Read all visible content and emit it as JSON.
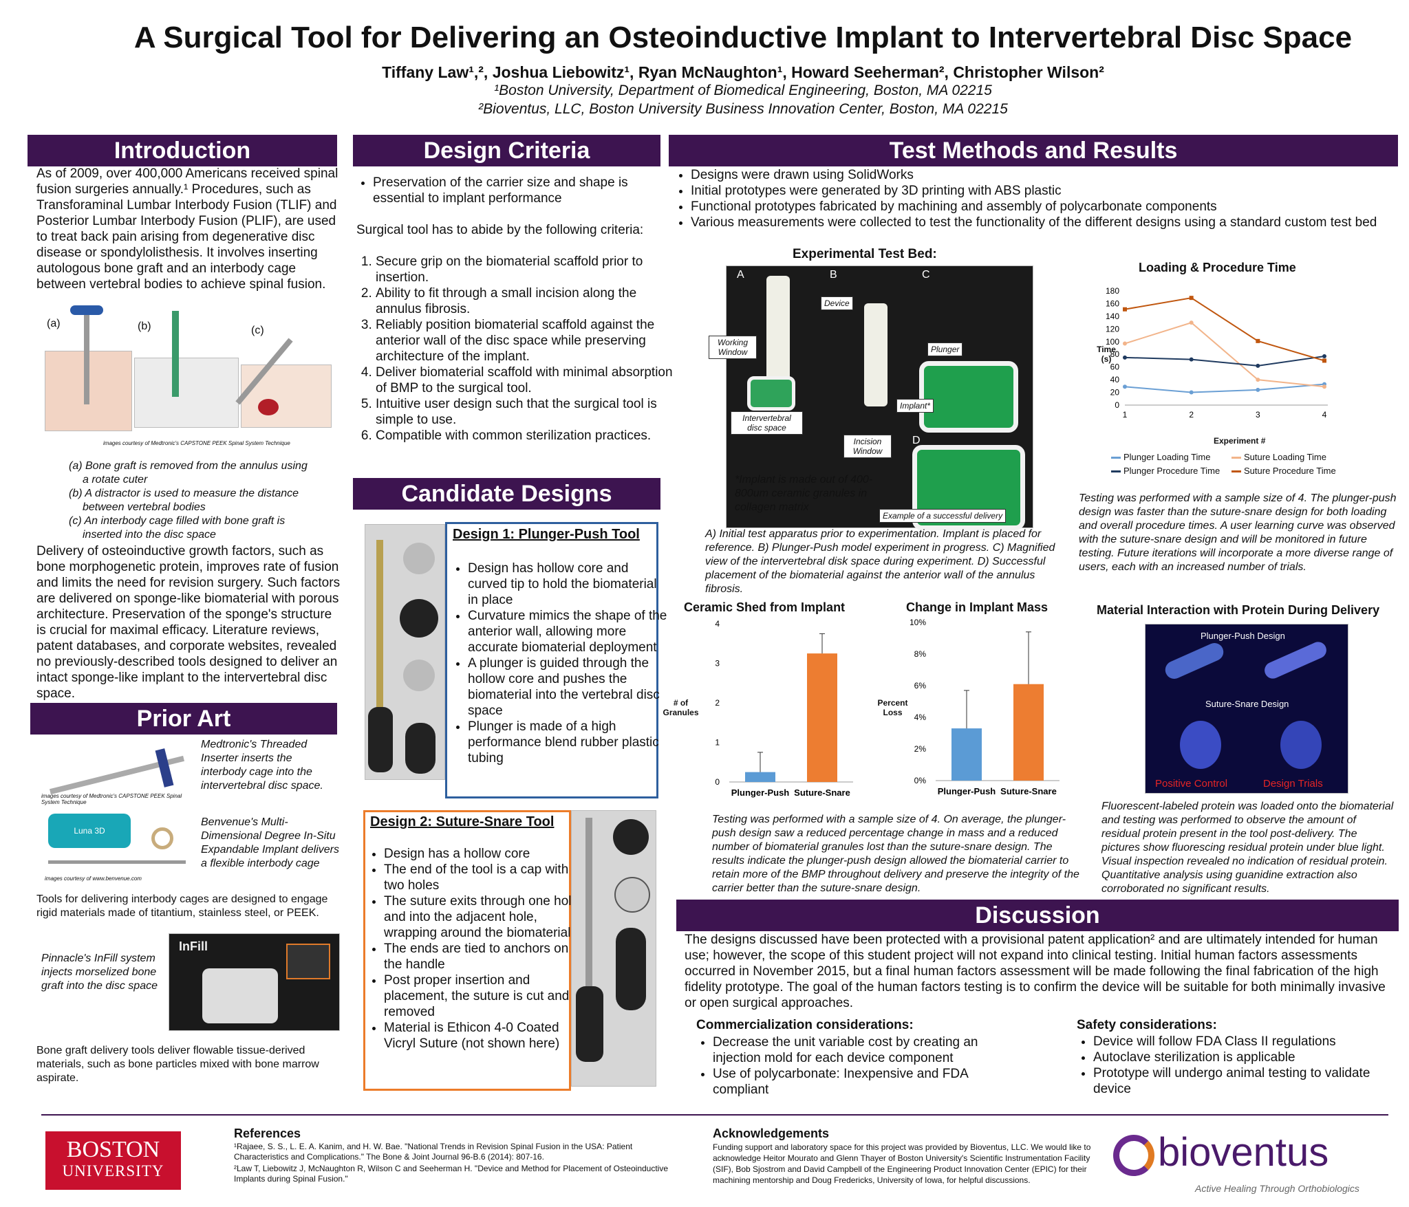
{
  "title": "A Surgical Tool for Delivering an Osteoinductive Implant to Intervertebral Disc Space",
  "authors": "Tiffany Law¹,², Joshua Liebowitz¹, Ryan McNaughton¹, Howard Seeherman², Christopher Wilson²",
  "affil1": "¹Boston University, Department of Biomedical Engineering, Boston, MA 02215",
  "affil2": "²Bioventus, LLC, Boston University Business Innovation Center, Boston, MA 02215",
  "intro": {
    "heading": "Introduction",
    "p1": "As of 2009, over 400,000 Americans received spinal fusion surgeries annually.¹ Procedures, such as Transforaminal Lumbar Interbody Fusion (TLIF) and Posterior Lumbar Interbody Fusion (PLIF), are used to treat back pain arising from degenerative disc disease or spondylolisthesis. It involves inserting autologous bone graft and an interbody cage between vertebral bodies to achieve spinal fusion.",
    "fig_a": "(a)",
    "fig_b": "(b)",
    "fig_c": "(c)",
    "credit": "images courtesy of Medtronic's CAPSTONE PEEK Spinal System Technique",
    "cap_a": "(a) Bone graft is removed from the annulus using a rotate cuter",
    "cap_b": "(b)  A distractor is used to measure the distance between vertebral bodies",
    "cap_c": "(c) An interbody cage filled with bone graft is inserted into the disc space",
    "p2": "Delivery of osteoinductive growth factors, such as bone morphogenetic protein, improves rate of fusion and limits the need for revision surgery. Such factors are delivered on sponge-like biomaterial with porous architecture. Preservation of the sponge's structure is crucial for maximal efficacy. Literature reviews, patent databases, and corporate websites, revealed no previously-described tools designed to deliver an intact sponge-like implant to the intervertebral disc space."
  },
  "prior": {
    "heading": "Prior Art",
    "medtronic": "Medtronic's Threaded Inserter inserts the interbody cage into the intervertebral disc space.",
    "credit1": "images courtesy of Medtronic's CAPSTONE PEEK Spinal System Technique",
    "benvenue": "Benvenue's Multi-Dimensional Degree In-Situ Expandable Implant delivers a flexible interbody cage",
    "credit2": "images courtesy of www.benvenue.com",
    "luna": "Luna 3D",
    "tools": "Tools for delivering interbody cages are designed to engage rigid materials made of titantium, stainless steel, or PEEK.",
    "pinnacle": "Pinnacle's InFill system injects morselized bone graft into the disc space",
    "infill": "InFill",
    "bone": "Bone graft delivery tools deliver flowable tissue-derived materials, such as bone particles mixed with bone marrow aspirate."
  },
  "design": {
    "heading": "Design Criteria",
    "bullet": "Preservation of the carrier size and shape is essential to implant performance",
    "intro": "Surgical tool has to abide by the following criteria:",
    "items": [
      "Secure grip on the biomaterial scaffold prior to insertion.",
      "Ability to fit through a small incision along the annulus fibrosis.",
      "Reliably position biomaterial scaffold against the anterior wall of the disc space while preserving architecture of the implant.",
      "Deliver biomaterial scaffold with minimal absorption of BMP to the surgical tool.",
      "Intuitive user design such that the surgical tool is simple to use.",
      "Compatible with common sterilization practices."
    ]
  },
  "candidate": {
    "heading": "Candidate Designs",
    "d1_title": "Design 1: Plunger-Push Tool",
    "d1": [
      "Design has hollow core and curved tip to hold the biomaterial in place",
      "Curvature mimics the shape of the anterior wall, allowing more accurate biomaterial deployment",
      "A plunger is guided through the hollow core and pushes the biomaterial into the vertebral disc space",
      "Plunger is made of a high performance blend rubber plastic tubing"
    ],
    "d2_title": "Design 2: Suture-Snare Tool",
    "d2": [
      "Design has a hollow core",
      "The end of the tool is a cap with two holes",
      "The suture exits through one hole and into the adjacent hole, wrapping around the biomaterial",
      "The ends are tied to anchors on the handle",
      "Post proper insertion and placement, the suture is cut and removed",
      "Material is Ethicon 4-0 Coated Vicryl Suture (not shown here)"
    ]
  },
  "test": {
    "heading": "Test Methods and Results",
    "bullets": [
      "Designs were drawn using SolidWorks",
      "Initial prototypes were generated by 3D printing with ABS plastic",
      "Functional prototypes fabricated by machining and assembly of polycarbonate components",
      "Various measurements were collected to test the functionality of the different designs using a standard custom test bed"
    ],
    "bed_title": "Experimental Test Bed:",
    "labels": {
      "A": "A",
      "B": "B",
      "C": "C",
      "D": "D",
      "device": "Device",
      "working": "Working Window",
      "plunger": "Plunger",
      "implant": "Implant*",
      "ivd": "Intervertebral disc space",
      "incision": "Incision Window",
      "success": "Example of a successful delivery"
    },
    "implant_note": "*Implant is made out of 400-800um ceramic granules in collagen matrix",
    "bed_caption": "A) Initial test apparatus prior to experimentation. Implant is placed for reference. B) Plunger-Push model experiment in progress. C) Magnified view of the intervertebral disk space during experiment. D) Successful placement of the biomaterial against the anterior wall of the annulus fibrosis.",
    "loading_caption": "Testing was performed with a sample size of 4. The plunger-push design was faster than the suture-snare design for both loading and overall procedure times. A user learning curve was observed with the suture-snare design and will be monitored in future testing. Future iterations will incorporate a more diverse range of users, each with an increased number of trials.",
    "bars_caption": "Testing was performed with a sample size of 4. On average, the plunger-push design saw a reduced percentage change in mass and a reduced number of biomaterial granules lost than the suture-snare design. The results indicate the plunger-push design allowed the biomaterial carrier to retain more of the BMP throughout delivery and preserve the integrity of the carrier better than the suture-snare design.",
    "protein_title": "Material Interaction with Protein During Delivery",
    "protein_labels": {
      "pp": "Plunger-Push Design",
      "ss": "Suture-Snare Design",
      "pos": "Positive Control",
      "trials": "Design Trials"
    },
    "protein_caption": "Fluorescent-labeled protein was loaded onto the biomaterial and testing was performed to observe the amount of residual protein present in the tool post-delivery. The pictures show fluorescing residual protein under blue light. Visual inspection revealed no indication of residual protein. Quantitative analysis using guanidine extraction also corroborated no significant results."
  },
  "chart_data": [
    {
      "type": "line",
      "title": "Loading & Procedure Time",
      "xlabel": "Experiment #",
      "ylabel": "Time (s)",
      "x": [
        1,
        2,
        3,
        4
      ],
      "ylim": [
        0,
        180
      ],
      "yticks": [
        0,
        20,
        40,
        60,
        80,
        100,
        120,
        140,
        160,
        180
      ],
      "series": [
        {
          "name": "Plunger Loading Time",
          "color": "#6a9fd4",
          "values": [
            29,
            20,
            24,
            33
          ]
        },
        {
          "name": "Suture Loading Time",
          "color": "#f2b48a",
          "values": [
            97,
            130,
            40,
            29
          ]
        },
        {
          "name": "Plunger Procedure Time",
          "color": "#1f3a5f",
          "values": [
            75,
            72,
            62,
            77
          ]
        },
        {
          "name": "Suture Procedure Time",
          "color": "#c0560e",
          "values": [
            151,
            169,
            101,
            70
          ]
        }
      ]
    },
    {
      "type": "bar",
      "title": "Ceramic Shed from Implant",
      "ylabel": "# of Granules",
      "categories": [
        "Plunger-Push",
        "Suture-Snare"
      ],
      "values": [
        0.25,
        3.25
      ],
      "errors": [
        0.5,
        0.5
      ],
      "ylim": [
        0,
        4
      ],
      "yticks": [
        0,
        1,
        2,
        3,
        4
      ],
      "colors": [
        "#5b9bd5",
        "#ed7d31"
      ]
    },
    {
      "type": "bar",
      "title": "Change in Implant Mass",
      "ylabel": "Percent Loss",
      "categories": [
        "Plunger-Push",
        "Suture-Snare"
      ],
      "values": [
        3.3,
        6.1
      ],
      "errors": [
        2.4,
        3.3
      ],
      "ylim": [
        0,
        10
      ],
      "yticks": [
        "0%",
        "2%",
        "4%",
        "6%",
        "8%",
        "10%"
      ],
      "colors": [
        "#5b9bd5",
        "#ed7d31"
      ]
    }
  ],
  "discussion": {
    "heading": "Discussion",
    "p": "The designs discussed have been protected with a provisional patent application² and are ultimately intended for human use; however, the scope of this student project will not expand into clinical testing. Initial human factors assessments occurred in November 2015, but a final human factors assessment will be made following the final fabrication of the high fidelity prototype. The goal of the human factors testing is to confirm the device will be suitable for both minimally invasive or open surgical approaches.",
    "comm_title": "Commercialization considerations:",
    "comm": [
      "Decrease the unit variable cost by creating an injection mold for each device component",
      "Use of polycarbonate: Inexpensive and FDA compliant"
    ],
    "safety_title": "Safety considerations:",
    "safety": [
      "Device will follow FDA Class II regulations",
      "Autoclave sterilization is applicable",
      "Prototype will undergo animal testing to validate device"
    ]
  },
  "footer": {
    "bu1": "BOSTON",
    "bu2": "UNIVERSITY",
    "ref_title": "References",
    "ref1": "¹Rajaee, S. S., L. E. A. Kanim, and H. W. Bae. \"National Trends in Revision Spinal Fusion in the USA: Patient Characteristics and Complications.\" The Bone & Joint Journal 96-B.6 (2014): 807-16.",
    "ref2": "²Law T, Liebowitz J, McNaughton R, Wilson C and Seeherman H. \"Device and Method for Placement of Osteoinductive Implants during Spinal Fusion.\"",
    "ack_title": "Acknowledgements",
    "ack": "Funding support and laboratory space for this project was provided by Bioventus, LLC. We would like to acknowledge Heitor Mourato and Glenn Thayer of Boston University's Scientific Instrumentation Facility (SIF), Bob Sjostrom and David Campbell of the Engineering Product Innovation Center (EPIC) for their machining mentorship and Doug Fredericks, University of Iowa, for helpful discussions.",
    "bio": "bioventus",
    "tag": "Active Healing Through Orthobiologics"
  }
}
